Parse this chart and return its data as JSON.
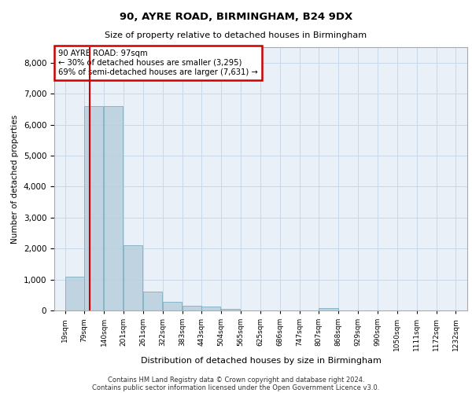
{
  "title1": "90, AYRE ROAD, BIRMINGHAM, B24 9DX",
  "title2": "Size of property relative to detached houses in Birmingham",
  "xlabel": "Distribution of detached houses by size in Birmingham",
  "ylabel": "Number of detached properties",
  "footnote1": "Contains HM Land Registry data © Crown copyright and database right 2024.",
  "footnote2": "Contains public sector information licensed under the Open Government Licence v3.0.",
  "bin_labels": [
    "19sqm",
    "79sqm",
    "140sqm",
    "201sqm",
    "261sqm",
    "322sqm",
    "383sqm",
    "443sqm",
    "504sqm",
    "565sqm",
    "625sqm",
    "686sqm",
    "747sqm",
    "807sqm",
    "868sqm",
    "929sqm",
    "990sqm",
    "1050sqm",
    "1111sqm",
    "1172sqm",
    "1232sqm"
  ],
  "bin_edges": [
    19,
    79,
    140,
    201,
    261,
    322,
    383,
    443,
    504,
    565,
    625,
    686,
    747,
    807,
    868,
    929,
    990,
    1050,
    1111,
    1172,
    1232
  ],
  "bar_values": [
    1100,
    6600,
    6600,
    2100,
    600,
    280,
    150,
    130,
    60,
    10,
    0,
    0,
    0,
    80,
    0,
    0,
    0,
    0,
    0,
    0
  ],
  "bar_color": "#b8d0dc",
  "bar_edgecolor": "#7aafc0",
  "bar_alpha": 0.85,
  "vline_x": 97,
  "vline_color": "#cc0000",
  "annotation_text": "90 AYRE ROAD: 97sqm\n← 30% of detached houses are smaller (3,295)\n69% of semi-detached houses are larger (7,631) →",
  "box_color": "#cc0000",
  "ylim": [
    0,
    8500
  ],
  "yticks": [
    0,
    1000,
    2000,
    3000,
    4000,
    5000,
    6000,
    7000,
    8000
  ],
  "grid_color": "#c8d8e8",
  "bg_color": "#eaf0f8"
}
